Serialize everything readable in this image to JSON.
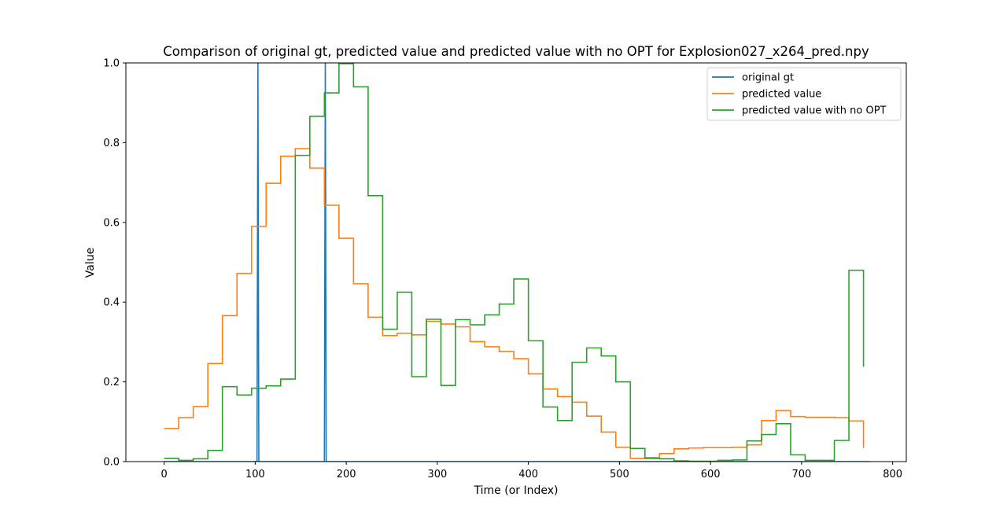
{
  "chart_data": {
    "type": "line",
    "title": "Comparison of original gt, predicted value and predicted value with no OPT for Explosion027_x264_pred.npy",
    "xlabel": "Time (or Index)",
    "ylabel": "Value",
    "xlim": [
      -42,
      815
    ],
    "ylim": [
      0,
      1
    ],
    "xticks": [
      0,
      100,
      200,
      300,
      400,
      500,
      600,
      700,
      800
    ],
    "yticks": [
      0.0,
      0.2,
      0.4,
      0.6,
      0.8,
      1.0
    ],
    "xtick_labels": [
      "0",
      "100",
      "200",
      "300",
      "400",
      "500",
      "600",
      "700",
      "800"
    ],
    "ytick_labels": [
      "0.0",
      "0.2",
      "0.4",
      "0.6",
      "0.8",
      "1.0"
    ],
    "grid": false,
    "legend_position": "top-right",
    "series": [
      {
        "name": "original gt",
        "color": "#1f77b4",
        "step": false,
        "x": [
          0,
          102,
          103,
          104,
          176,
          177,
          178,
          775
        ],
        "y": [
          0,
          0,
          1,
          0,
          0,
          1,
          0,
          0
        ]
      },
      {
        "name": "predicted value",
        "color": "#ff7f0e",
        "step": true,
        "x": [
          0,
          16,
          32,
          48,
          64,
          80,
          96,
          112,
          128,
          144,
          160,
          176,
          192,
          208,
          224,
          240,
          256,
          272,
          288,
          304,
          320,
          336,
          352,
          368,
          384,
          400,
          416,
          432,
          448,
          464,
          480,
          496,
          512,
          528,
          544,
          560,
          576,
          592,
          608,
          624,
          640,
          656,
          672,
          688,
          704,
          720,
          736,
          752,
          768
        ],
        "y": [
          0.083,
          0.11,
          0.138,
          0.246,
          0.366,
          0.472,
          0.59,
          0.698,
          0.766,
          0.785,
          0.736,
          0.643,
          0.56,
          0.446,
          0.362,
          0.316,
          0.322,
          0.318,
          0.352,
          0.345,
          0.338,
          0.301,
          0.288,
          0.276,
          0.258,
          0.22,
          0.182,
          0.163,
          0.149,
          0.114,
          0.074,
          0.036,
          0.008,
          0.01,
          0.02,
          0.032,
          0.034,
          0.035,
          0.035,
          0.036,
          0.042,
          0.103,
          0.128,
          0.113,
          0.111,
          0.111,
          0.11,
          0.102,
          0.034
        ]
      },
      {
        "name": "predicted value with no OPT",
        "color": "#2ca02c",
        "step": true,
        "x": [
          0,
          16,
          32,
          48,
          64,
          80,
          96,
          112,
          128,
          144,
          160,
          176,
          192,
          208,
          224,
          240,
          256,
          272,
          288,
          304,
          320,
          336,
          352,
          368,
          384,
          400,
          416,
          432,
          448,
          464,
          480,
          496,
          512,
          528,
          544,
          560,
          576,
          592,
          608,
          624,
          640,
          656,
          672,
          688,
          704,
          720,
          736,
          752,
          768
        ],
        "y": [
          0.008,
          0.003,
          0.007,
          0.028,
          0.188,
          0.167,
          0.184,
          0.19,
          0.207,
          0.768,
          0.866,
          0.925,
          0.998,
          0.94,
          0.667,
          0.332,
          0.425,
          0.213,
          0.357,
          0.191,
          0.356,
          0.343,
          0.368,
          0.395,
          0.458,
          0.303,
          0.137,
          0.103,
          0.249,
          0.285,
          0.265,
          0.2,
          0.033,
          0.008,
          0.007,
          0.002,
          0.001,
          0.001,
          0.003,
          0.004,
          0.052,
          0.068,
          0.095,
          0.017,
          0.003,
          0.003,
          0.053,
          0.48,
          0.238
        ]
      }
    ]
  }
}
